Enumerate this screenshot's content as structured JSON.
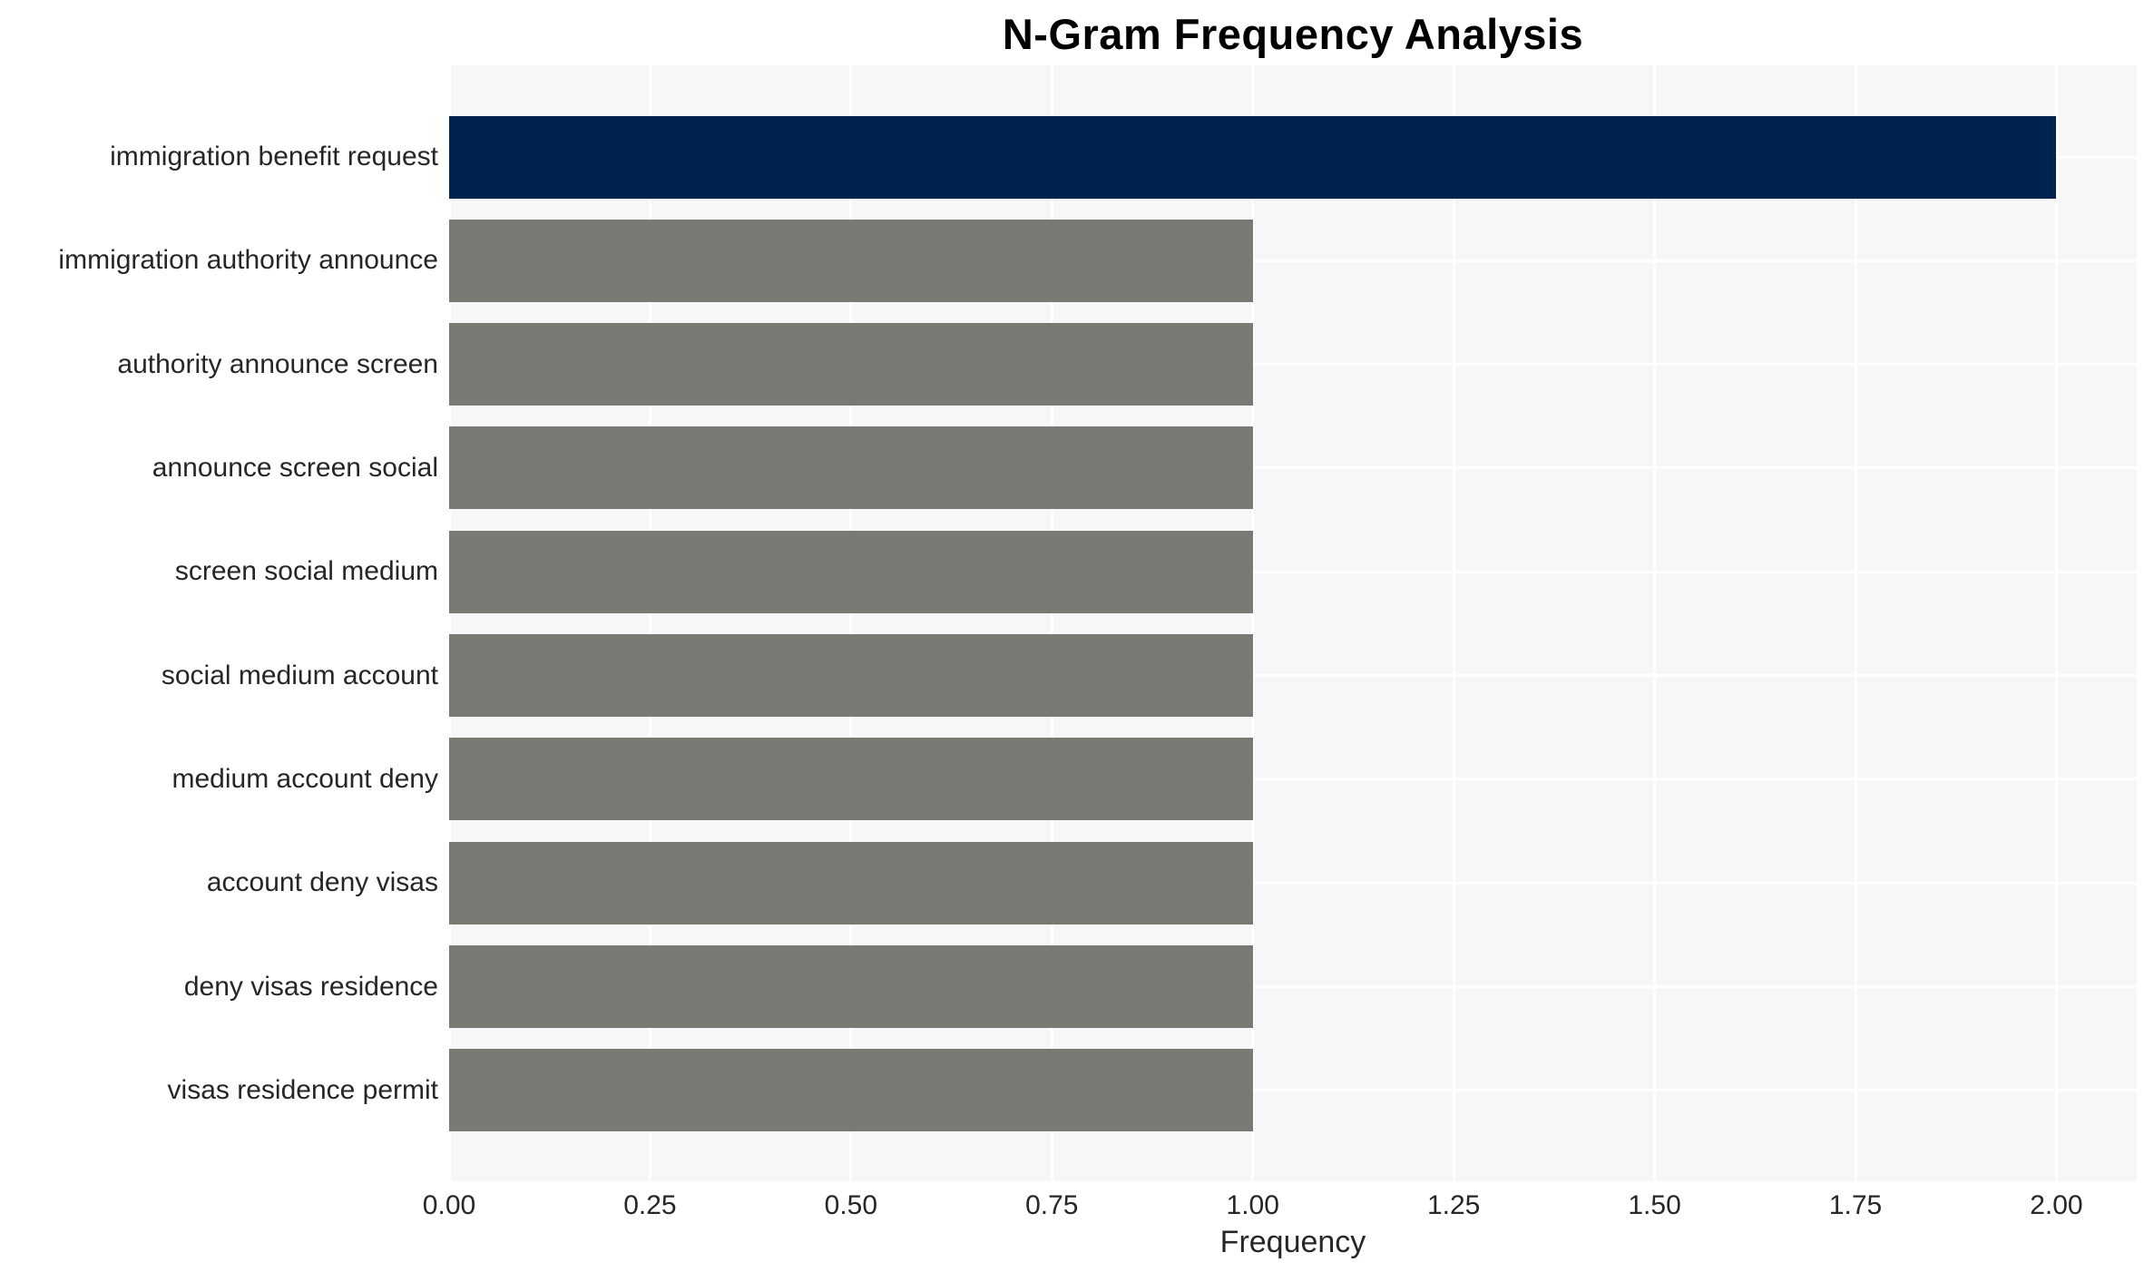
{
  "chart_data": {
    "type": "bar",
    "orientation": "horizontal",
    "title": "N-Gram Frequency Analysis",
    "xlabel": "Frequency",
    "ylabel": "",
    "categories": [
      "immigration benefit request",
      "immigration authority announce",
      "authority announce screen",
      "announce screen social",
      "screen social medium",
      "social medium account",
      "medium account deny",
      "account deny visas",
      "deny visas residence",
      "visas residence permit"
    ],
    "values": [
      2,
      1,
      1,
      1,
      1,
      1,
      1,
      1,
      1,
      1
    ],
    "bar_colors": [
      "#00234d",
      "#7b7974",
      "#7b7974",
      "#7b7974",
      "#7b7974",
      "#7b7974",
      "#7b7974",
      "#7b7974",
      "#7b7974",
      "#7b7974"
    ],
    "xticks": [
      0,
      0.25,
      0.5,
      0.75,
      1.0,
      1.25,
      1.5,
      1.75,
      2.0
    ],
    "xtick_labels": [
      "0.00",
      "0.25",
      "0.50",
      "0.75",
      "1.00",
      "1.25",
      "1.50",
      "1.75",
      "2.00"
    ],
    "xlim": [
      0,
      2.1
    ],
    "grid": true,
    "legend": false,
    "colors": {
      "highlight_bar": "#00234d",
      "default_bar": "#7b7974",
      "plot_background": "#f7f7f7",
      "gridline": "#ffffff",
      "tick_text": "#262626",
      "title_text": "#000000"
    }
  }
}
